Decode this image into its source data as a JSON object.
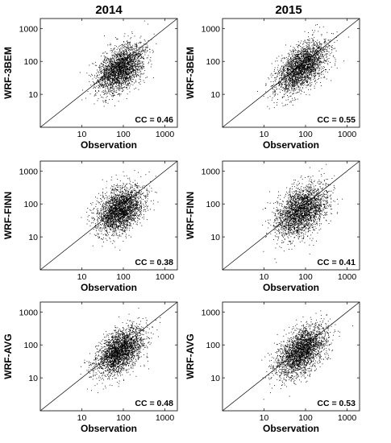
{
  "column_titles": [
    "2014",
    "2015"
  ],
  "chart_data": [
    {
      "type": "scatter",
      "panel": "2014-WRF-3BEM",
      "xlabel": "Observation",
      "ylabel": "WRF-3BEM",
      "annotation": "CC = 0.46",
      "cc": 0.46,
      "xscale": "log",
      "yscale": "log",
      "xlim": [
        1,
        2000
      ],
      "ylim": [
        1,
        2000
      ],
      "xticks": [
        10,
        100,
        1000
      ],
      "yticks": [
        10,
        100,
        1000
      ],
      "xtick_labels": [
        "10",
        "100",
        "1000"
      ],
      "ytick_labels": [
        "10",
        "100",
        "1000"
      ],
      "reference_line": "1:1",
      "center": [
        85,
        60
      ],
      "spread": [
        0.28,
        0.36
      ],
      "n_points": 2500,
      "seed": 11
    },
    {
      "type": "scatter",
      "panel": "2015-WRF-3BEM",
      "xlabel": "Observation",
      "ylabel": "WRF-3BEM",
      "annotation": "CC = 0.55",
      "cc": 0.55,
      "xscale": "log",
      "yscale": "log",
      "xlim": [
        1,
        2000
      ],
      "ylim": [
        1,
        2000
      ],
      "xticks": [
        10,
        100,
        1000
      ],
      "yticks": [
        10,
        100,
        1000
      ],
      "xtick_labels": [
        "10",
        "100",
        "1000"
      ],
      "ytick_labels": [
        "10",
        "100",
        "1000"
      ],
      "reference_line": "1:1",
      "center": [
        80,
        65
      ],
      "spread": [
        0.3,
        0.38
      ],
      "n_points": 2500,
      "seed": 23
    },
    {
      "type": "scatter",
      "panel": "2014-WRF-FINN",
      "xlabel": "Observation",
      "ylabel": "WRF-FINN",
      "annotation": "CC = 0.38",
      "cc": 0.38,
      "xscale": "log",
      "yscale": "log",
      "xlim": [
        1,
        2000
      ],
      "ylim": [
        1,
        2000
      ],
      "xticks": [
        10,
        100,
        1000
      ],
      "yticks": [
        10,
        100,
        1000
      ],
      "xtick_labels": [
        "10",
        "100",
        "1000"
      ],
      "ytick_labels": [
        "10",
        "100",
        "1000"
      ],
      "reference_line": "1:1",
      "center": [
        85,
        65
      ],
      "spread": [
        0.28,
        0.36
      ],
      "n_points": 2500,
      "seed": 37
    },
    {
      "type": "scatter",
      "panel": "2015-WRF-FINN",
      "xlabel": "Observation",
      "ylabel": "WRF-FINN",
      "annotation": "CC = 0.41",
      "cc": 0.41,
      "xscale": "log",
      "yscale": "log",
      "xlim": [
        1,
        2000
      ],
      "ylim": [
        1,
        2000
      ],
      "xticks": [
        10,
        100,
        1000
      ],
      "yticks": [
        10,
        100,
        1000
      ],
      "xtick_labels": [
        "10",
        "100",
        "1000"
      ],
      "ytick_labels": [
        "10",
        "100",
        "1000"
      ],
      "reference_line": "1:1",
      "center": [
        80,
        60
      ],
      "spread": [
        0.3,
        0.4
      ],
      "n_points": 2500,
      "seed": 41
    },
    {
      "type": "scatter",
      "panel": "2014-WRF-AVG",
      "xlabel": "Observation",
      "ylabel": "WRF-AVG",
      "annotation": "CC = 0.48",
      "cc": 0.48,
      "xscale": "log",
      "yscale": "log",
      "xlim": [
        1,
        2000
      ],
      "ylim": [
        1,
        2000
      ],
      "xticks": [
        10,
        100,
        1000
      ],
      "yticks": [
        10,
        100,
        1000
      ],
      "xtick_labels": [
        "10",
        "100",
        "1000"
      ],
      "ytick_labels": [
        "10",
        "100",
        "1000"
      ],
      "reference_line": "1:1",
      "center": [
        85,
        65
      ],
      "spread": [
        0.28,
        0.35
      ],
      "n_points": 2500,
      "seed": 53
    },
    {
      "type": "scatter",
      "panel": "2015-WRF-AVG",
      "xlabel": "Observation",
      "ylabel": "WRF-AVG",
      "annotation": "CC = 0.53",
      "cc": 0.53,
      "xscale": "log",
      "yscale": "log",
      "xlim": [
        1,
        2000
      ],
      "ylim": [
        1,
        2000
      ],
      "xticks": [
        10,
        100,
        1000
      ],
      "yticks": [
        10,
        100,
        1000
      ],
      "xtick_labels": [
        "10",
        "100",
        "1000"
      ],
      "ytick_labels": [
        "10",
        "100",
        "1000"
      ],
      "reference_line": "1:1",
      "center": [
        80,
        65
      ],
      "spread": [
        0.3,
        0.38
      ],
      "n_points": 2500,
      "seed": 67
    }
  ]
}
